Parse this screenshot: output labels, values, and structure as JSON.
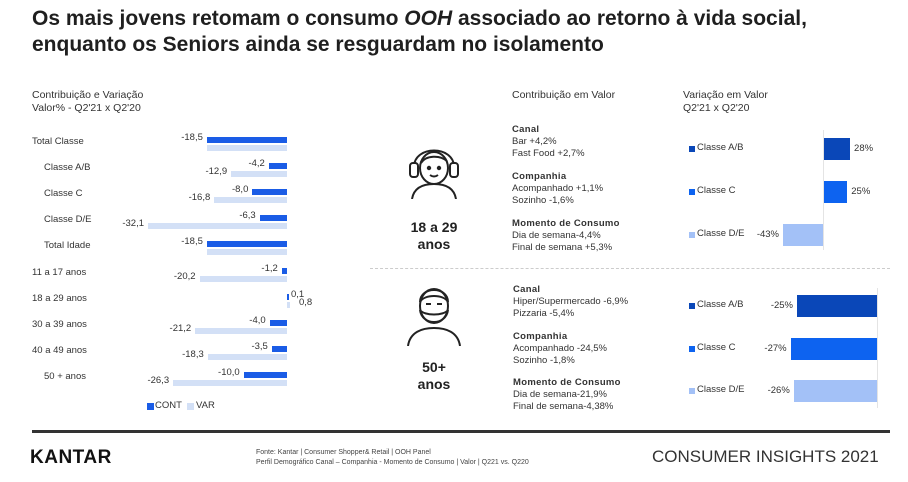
{
  "title": {
    "part1": "Os mais jovens retomam o consumo ",
    "emph": "OOH",
    "part2": " associado ao retorno à vida social,",
    "line2": "enquanto os Seniors ainda se resguardam no isolamento"
  },
  "colors": {
    "cont": "#1a5ce6",
    "var": "#d3e0f6",
    "ab": "#0a47b8",
    "c": "#0d63f0",
    "de": "#a3c1f7"
  },
  "chart_data": [
    {
      "type": "bar",
      "orientation": "horizontal",
      "title": "Contribuição e Variação",
      "subtitle": "Valor% - Q2'21 x Q2'20",
      "categories": [
        "Total Classe",
        "Classe A/B",
        "Classe C",
        "Classe D/E",
        "Total Idade",
        "11 a 17 anos",
        "18 a 29 anos",
        "30 a 39 anos",
        "40 a 49 anos",
        "50 + anos"
      ],
      "series": [
        {
          "name": "CONT",
          "values": [
            -18.5,
            -4.2,
            -8.0,
            -6.3,
            -18.5,
            -1.2,
            0.1,
            -4.0,
            -3.5,
            -10.0
          ],
          "labels": [
            "-18,5",
            "-4,2",
            "-8,0",
            "-6,3",
            "-18,5",
            "-1,2",
            "0,1",
            "-4,0",
            "-3,5",
            "-10,0"
          ]
        },
        {
          "name": "VAR",
          "values": [
            -18.5,
            -12.9,
            -16.8,
            -32.1,
            -18.5,
            -20.2,
            0.8,
            -21.2,
            -18.3,
            -26.3
          ],
          "labels": [
            "",
            "-12,9",
            "-16,8",
            "-32,1",
            "",
            "-20,2",
            "0,8",
            "-21,2",
            "-18,3",
            "-26,3"
          ]
        }
      ],
      "legend": "bottom"
    },
    {
      "type": "bar",
      "orientation": "horizontal",
      "title": "Variação em Valor",
      "subtitle": "Q2'21 x Q2'20",
      "group": "18 a 29 anos",
      "categories": [
        "Classe A/B",
        "Classe C",
        "Classe D/E"
      ],
      "values": [
        28,
        25,
        -43
      ],
      "labels": [
        "28%",
        "25%",
        "-43%"
      ]
    },
    {
      "type": "bar",
      "orientation": "horizontal",
      "group": "50+ anos",
      "categories": [
        "Classe A/B",
        "Classe C",
        "Classe D/E"
      ],
      "values": [
        -25,
        -27,
        -26
      ],
      "labels": [
        "-25%",
        "-27%",
        "-26%"
      ]
    }
  ],
  "contrib": {
    "header": "Contribuição em Valor",
    "young": {
      "age": [
        "18 a 29",
        "anos"
      ],
      "blocks": [
        {
          "title": "Canal",
          "lines": [
            "Bar +4,2%",
            "Fast Food +2,7%"
          ]
        },
        {
          "title": "Companhia",
          "lines": [
            "Acompanhado +1,1%",
            "Sozinho -1,6%"
          ]
        },
        {
          "title": "Momento de Consumo",
          "lines": [
            "Dia de semana-4,4%",
            "Final de semana +5,3%"
          ]
        }
      ]
    },
    "senior": {
      "age": [
        "50+",
        "anos"
      ],
      "blocks": [
        {
          "title": "Canal",
          "lines": [
            "Hiper/Supermercado -6,9%",
            "Pizzaria -5,4%"
          ]
        },
        {
          "title": "Companhia",
          "lines": [
            "Acompanhado -24,5%",
            "Sozinho -1,8%"
          ]
        },
        {
          "title": "Momento de Consumo",
          "lines": [
            "Dia de semana-21,9%",
            "Final de semana-4,38%"
          ]
        }
      ]
    }
  },
  "footer": {
    "logo": "KANTAR",
    "source1": "Fonte: Kantar | Consumer Shopper& Retail | OOH Panel",
    "source2": "Perfil Demográfico Canal – Companhia - Momento de Consumo | Valor | Q221 vs. Q220",
    "brand": "CONSUMER INSIGHTS 2021"
  }
}
